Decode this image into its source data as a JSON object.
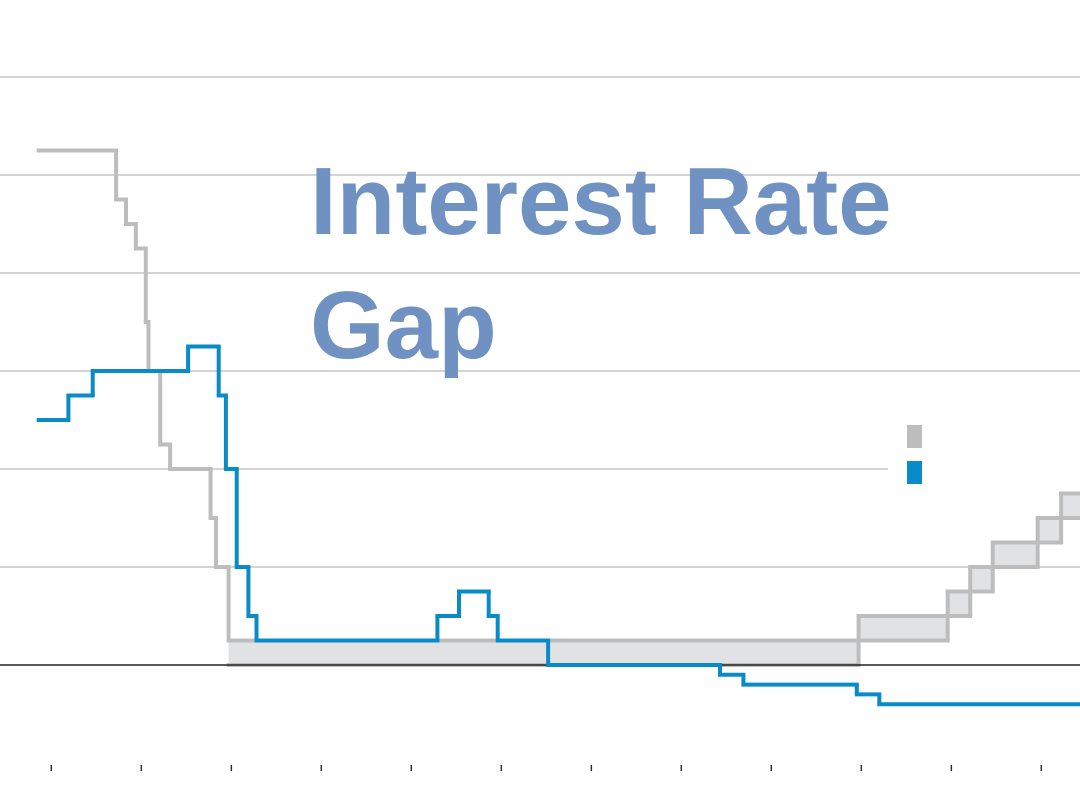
{
  "chart_data": {
    "type": "step",
    "title": "Interest Rate Gap",
    "xlim": [
      2006.43,
      2018.43
    ],
    "xticks": [
      2007,
      2008,
      2009,
      2010,
      2011,
      2012,
      2013,
      2014,
      2015,
      2016,
      2017,
      2018
    ],
    "ylim": [
      -1,
      6
    ],
    "yticks": [
      0,
      1,
      2,
      3,
      4,
      5,
      6
    ],
    "grid": true,
    "band_color": "#e1e2e4",
    "series": [
      {
        "color": "#bdbdbd",
        "x": [
          2006.86,
          2007.72,
          2007.83,
          2007.94,
          2008.05,
          2008.08,
          2008.21,
          2008.32,
          2008.77,
          2008.83,
          2008.97,
          2015.97,
          2016.96,
          2017.21,
          2017.46,
          2017.96,
          2018.22,
          2018.43
        ],
        "values": [
          5.25,
          4.75,
          4.5,
          4.25,
          3.5,
          3.0,
          2.25,
          2.0,
          1.5,
          1.0,
          0.25,
          0.5,
          0.75,
          1.0,
          1.25,
          1.5,
          1.75,
          1.75
        ]
      },
      {
        "color": "#bdbdbd",
        "x": [
          2006.86,
          2007.72,
          2007.83,
          2007.94,
          2008.05,
          2008.08,
          2008.21,
          2008.32,
          2008.77,
          2008.83,
          2008.97,
          2015.97,
          2016.96,
          2017.21,
          2017.46,
          2017.96,
          2018.22,
          2018.43
        ],
        "values": [
          null,
          null,
          null,
          null,
          null,
          null,
          null,
          null,
          null,
          null,
          0,
          0.25,
          0.5,
          0.75,
          1.0,
          1.25,
          1.5,
          1.5
        ]
      },
      {
        "color": "#0a8bc9",
        "x": [
          2006.86,
          2007.19,
          2007.46,
          2008.52,
          2008.86,
          2008.94,
          2009.06,
          2009.19,
          2009.28,
          2011.29,
          2011.53,
          2011.86,
          2011.96,
          2012.52,
          2014.43,
          2014.69,
          2015.95,
          2016.2,
          2018.43
        ],
        "values": [
          2.5,
          2.75,
          3.0,
          3.25,
          2.75,
          2.0,
          1.0,
          0.5,
          0.25,
          0.5,
          0.75,
          0.5,
          0.25,
          0,
          -0.1,
          -0.2,
          -0.3,
          -0.4,
          -0.4
        ]
      }
    ]
  }
}
